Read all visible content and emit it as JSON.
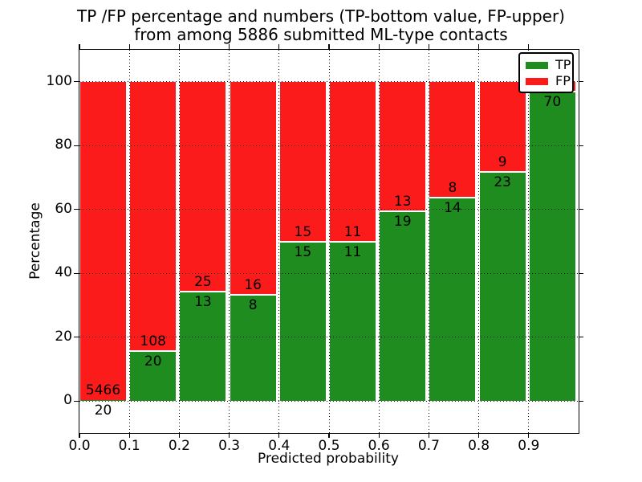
{
  "chart_data": {
    "type": "bar",
    "stacked": true,
    "title_line1": "TP /FP percentage and numbers (TP-bottom value, FP-upper)",
    "title_line2": "from among 5886 submitted ML-type contacts",
    "xlabel": "Predicted probability",
    "ylabel": "Percentage",
    "xlim": [
      0,
      1.0
    ],
    "ylim": [
      -10,
      110
    ],
    "grid": true,
    "bar_width": 0.095,
    "colors": {
      "tp": "#1e8c1e",
      "fp": "#fc1b1b",
      "separator": "#ffffff"
    },
    "x_ticks": [
      {
        "value": 0.0,
        "label": "0.0"
      },
      {
        "value": 0.1,
        "label": "0.1"
      },
      {
        "value": 0.2,
        "label": "0.2"
      },
      {
        "value": 0.3,
        "label": "0.3"
      },
      {
        "value": 0.4,
        "label": "0.4"
      },
      {
        "value": 0.5,
        "label": "0.5"
      },
      {
        "value": 0.6,
        "label": "0.6"
      },
      {
        "value": 0.7,
        "label": "0.7"
      },
      {
        "value": 0.8,
        "label": "0.8"
      },
      {
        "value": 0.9,
        "label": "0.9"
      }
    ],
    "y_ticks": [
      {
        "value": 0,
        "label": "0"
      },
      {
        "value": 20,
        "label": "20"
      },
      {
        "value": 40,
        "label": "40"
      },
      {
        "value": 60,
        "label": "60"
      },
      {
        "value": 80,
        "label": "80"
      },
      {
        "value": 100,
        "label": "100"
      }
    ],
    "legend": {
      "position": "upper-right",
      "entries": [
        {
          "label": "TP",
          "color": "#1e8c1e"
        },
        {
          "label": "FP",
          "color": "#fc1b1b"
        }
      ]
    },
    "bars": [
      {
        "bin": "0.0-0.1",
        "x": 0.0,
        "tp": 20,
        "fp": 5466,
        "tp_pct": 0.36,
        "tp_label": "20",
        "fp_label": "5466"
      },
      {
        "bin": "0.1-0.2",
        "x": 0.1,
        "tp": 20,
        "fp": 108,
        "tp_pct": 15.63,
        "tp_label": "20",
        "fp_label": "108"
      },
      {
        "bin": "0.2-0.3",
        "x": 0.2,
        "tp": 13,
        "fp": 25,
        "tp_pct": 34.21,
        "tp_label": "13",
        "fp_label": "25"
      },
      {
        "bin": "0.3-0.4",
        "x": 0.3,
        "tp": 8,
        "fp": 16,
        "tp_pct": 33.33,
        "tp_label": "8",
        "fp_label": "16"
      },
      {
        "bin": "0.4-0.5",
        "x": 0.4,
        "tp": 15,
        "fp": 15,
        "tp_pct": 50.0,
        "tp_label": "15",
        "fp_label": "15"
      },
      {
        "bin": "0.5-0.6",
        "x": 0.5,
        "tp": 11,
        "fp": 11,
        "tp_pct": 50.0,
        "tp_label": "11",
        "fp_label": "11"
      },
      {
        "bin": "0.6-0.7",
        "x": 0.6,
        "tp": 19,
        "fp": 13,
        "tp_pct": 59.38,
        "tp_label": "19",
        "fp_label": "13"
      },
      {
        "bin": "0.7-0.8",
        "x": 0.7,
        "tp": 14,
        "fp": 8,
        "tp_pct": 63.64,
        "tp_label": "14",
        "fp_label": "8"
      },
      {
        "bin": "0.8-0.9",
        "x": 0.8,
        "tp": 23,
        "fp": 9,
        "tp_pct": 71.88,
        "tp_label": "23",
        "fp_label": "9"
      },
      {
        "bin": "0.9-1.0",
        "x": 0.9,
        "tp": 70,
        "fp": null,
        "tp_pct": 97.0,
        "tp_label": "70",
        "fp_label": ""
      }
    ]
  }
}
